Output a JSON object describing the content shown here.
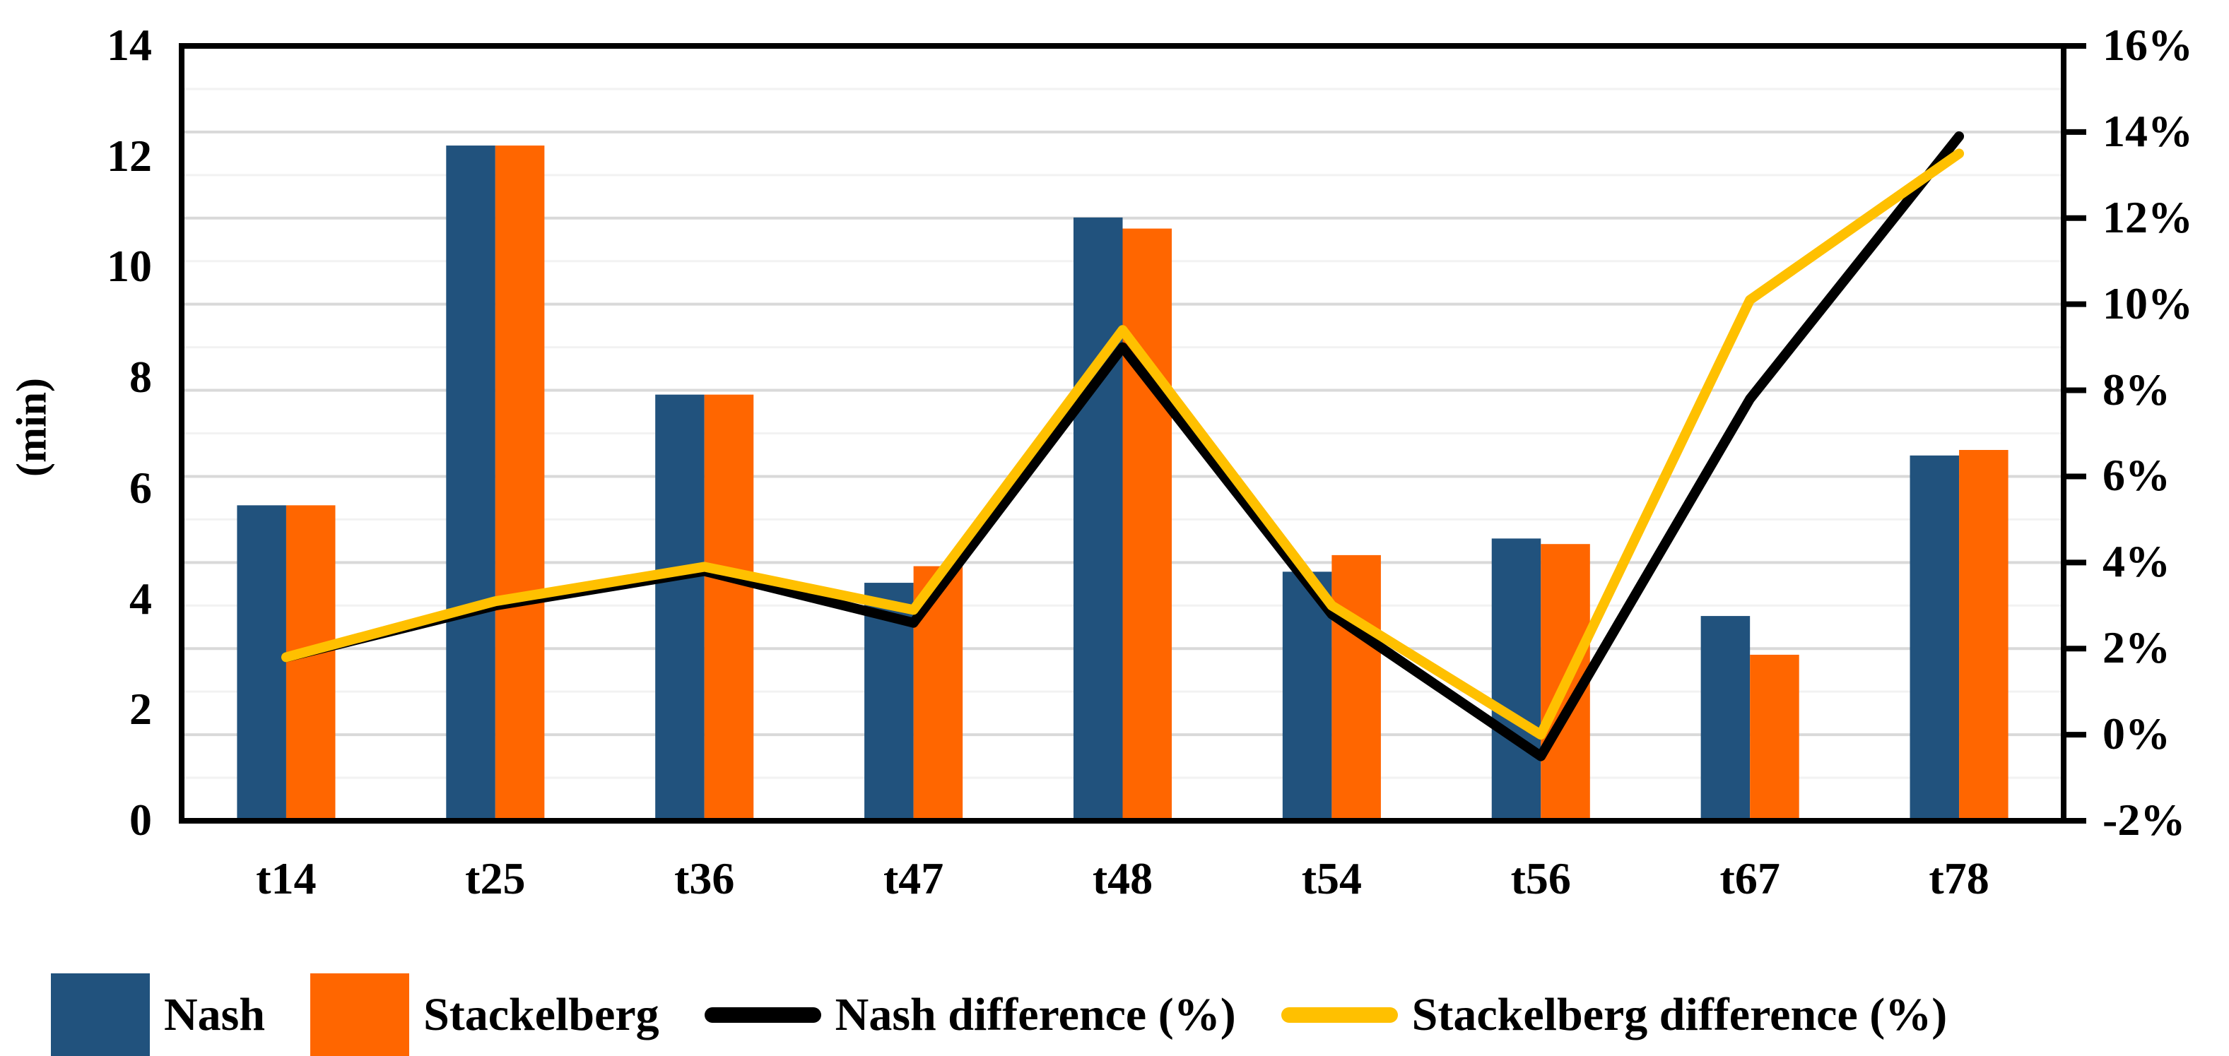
{
  "chart_data": {
    "type": "bar",
    "subtype": "combo-bar-line-dual-axis",
    "categories": [
      "t14",
      "t25",
      "t36",
      "t47",
      "t48",
      "t54",
      "t56",
      "t67",
      "t78"
    ],
    "series": [
      {
        "name": "Nash",
        "type": "bar",
        "axis": "left",
        "color": "#21527D",
        "values": [
          5.7,
          12.2,
          7.7,
          4.3,
          10.9,
          4.5,
          5.1,
          3.7,
          6.6
        ]
      },
      {
        "name": "Stackelberg",
        "type": "bar",
        "axis": "left",
        "color": "#FF6600",
        "values": [
          5.7,
          12.2,
          7.7,
          4.6,
          10.7,
          4.8,
          5.0,
          3.0,
          6.7
        ]
      },
      {
        "name": "Nash difference (%)",
        "type": "line",
        "axis": "right",
        "color": "#000000",
        "values": [
          1.8,
          3.0,
          3.8,
          2.6,
          9.0,
          2.8,
          -0.5,
          7.8,
          13.9
        ]
      },
      {
        "name": "Stackelberg difference (%)",
        "type": "line",
        "axis": "right",
        "color": "#FFC000",
        "values": [
          1.8,
          3.1,
          3.9,
          2.9,
          9.4,
          3.0,
          0.0,
          10.1,
          13.5
        ]
      }
    ],
    "left_axis": {
      "label": "(min)",
      "min": 0,
      "max": 14,
      "tick_step": 2,
      "ticks": [
        "0",
        "2",
        "4",
        "6",
        "8",
        "10",
        "12",
        "14"
      ]
    },
    "right_axis": {
      "min": -2,
      "max": 16,
      "tick_step": 2,
      "ticks": [
        "-2%",
        "0%",
        "2%",
        "4%",
        "6%",
        "8%",
        "10%",
        "12%",
        "14%",
        "16%"
      ]
    },
    "grid": {
      "minor_step_pct": 1,
      "major_step_pct": 2,
      "major_color": "#D9D9D9",
      "minor_color": "#F2F2F2"
    },
    "legend_position": "bottom",
    "title": "",
    "xlabel": "",
    "ylabel": "(min)"
  },
  "legend": {
    "items": [
      {
        "label": "Nash",
        "marker": "square",
        "color": "#21527D"
      },
      {
        "label": "Stackelberg",
        "marker": "square",
        "color": "#FF6600"
      },
      {
        "label": "Nash difference (%)",
        "marker": "line",
        "color": "#000000"
      },
      {
        "label": "Stackelberg difference (%)",
        "marker": "line",
        "color": "#FFC000"
      }
    ]
  }
}
